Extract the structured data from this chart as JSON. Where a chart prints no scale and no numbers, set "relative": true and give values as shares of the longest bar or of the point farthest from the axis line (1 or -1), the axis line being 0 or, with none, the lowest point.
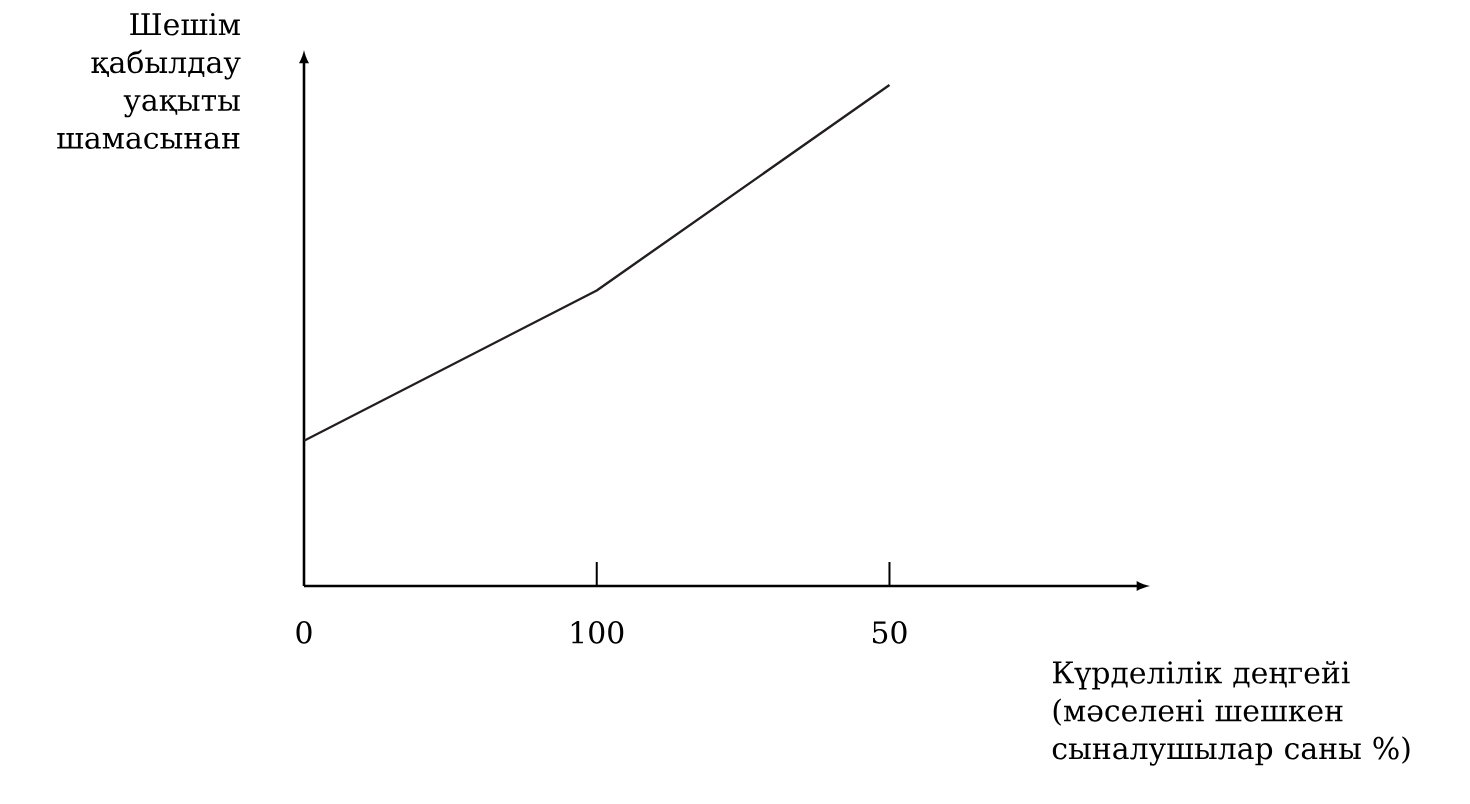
{
  "chart_data": {
    "type": "line",
    "xlabel": "Күрделілік деңгейі (мәселені шешкен сыналушылар саны %)",
    "ylabel": "Шешім қабылдау уақыты шамасынан",
    "categories": [
      "0",
      "100",
      "50"
    ],
    "relative": true,
    "marker": "none",
    "series": [
      {
        "color": "#231f20",
        "values": [
          0.29,
          0.59,
          1
        ]
      }
    ]
  }
}
